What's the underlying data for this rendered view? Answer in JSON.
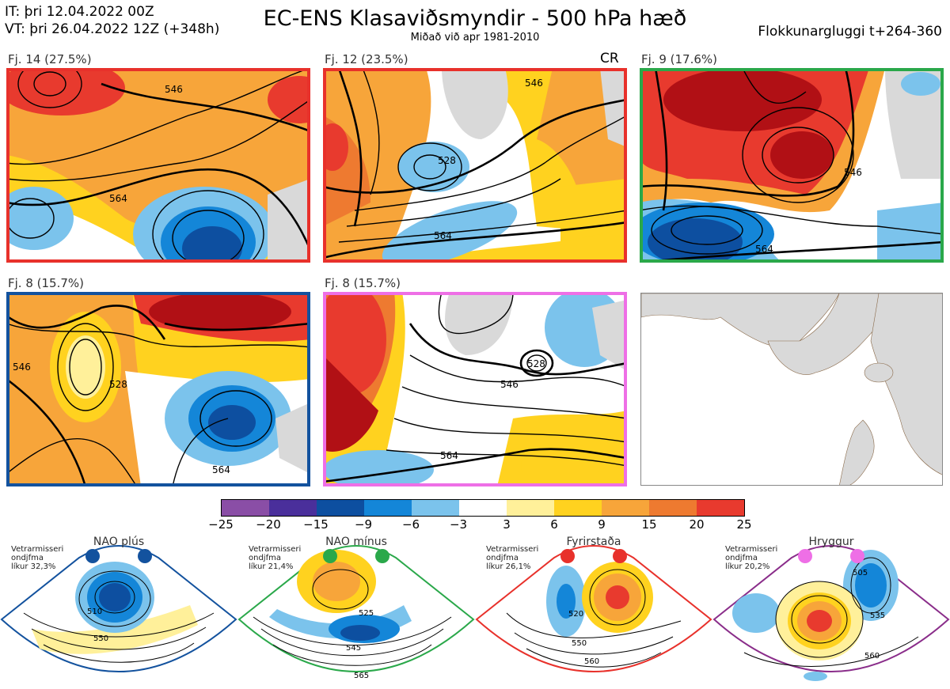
{
  "header": {
    "init_time": "IT: þri 12.04.2022 00Z",
    "valid_time": "VT: þri 26.04.2022 12Z  (+348h)",
    "title": "EC-ENS Klasaviðsmyndir - 500 hPa hæð",
    "subtitle": "Miðað við apr 1981-2010",
    "window": "Flokkunargluggi t+264-360"
  },
  "clusters": [
    {
      "label": "Fj. 14 (27.5%)",
      "frame_color": "#e8312b",
      "contours": [
        "564",
        "546"
      ]
    },
    {
      "label": "Fj. 12 (23.5%)",
      "frame_color": "#e8312b",
      "tag": "CR",
      "contours": [
        "546",
        "528",
        "564"
      ]
    },
    {
      "label": "Fj. 9 (17.6%)",
      "frame_color": "#2aa84a",
      "contours": [
        "546",
        "564"
      ]
    },
    {
      "label": "Fj. 8 (15.7%)",
      "frame_color": "#13529e",
      "contours": [
        "546",
        "528",
        "564"
      ]
    },
    {
      "label": "Fj. 8 (15.7%)",
      "frame_color": "#ee6fe6",
      "contours": [
        "528",
        "546",
        "564"
      ]
    }
  ],
  "colorbar": {
    "ticks": [
      "−25",
      "−20",
      "−15",
      "−9",
      "−6",
      "−3",
      "3",
      "6",
      "9",
      "15",
      "20",
      "25"
    ],
    "colors": [
      "#8a4ea6",
      "#4a2f9b",
      "#0d4fa0",
      "#1486d8",
      "#7bc3ec",
      "#ffffff",
      "#fff09a",
      "#ffd21f",
      "#f7a53a",
      "#ee7a30",
      "#e83a2e",
      "#b11015"
    ]
  },
  "regimes": [
    {
      "name": "NAO plús",
      "color": "#13529e",
      "note": [
        "Vetrarmisseri",
        "ondjfma",
        "líkur 32,3%"
      ],
      "contours": [
        "510",
        "550"
      ]
    },
    {
      "name": "NAO mínus",
      "color": "#2aa84a",
      "note": [
        "Vetrarmisseri",
        "ondjfma",
        "líkur 21,4%"
      ],
      "contours": [
        "525",
        "545",
        "565"
      ]
    },
    {
      "name": "Fyrirstaða",
      "color": "#e8312b",
      "note": [
        "Vetrarmisseri",
        "ondjfma",
        "líkur 26,1%"
      ],
      "contours": [
        "520",
        "550",
        "560"
      ]
    },
    {
      "name": "Hryggur",
      "color": "#ee6fe6",
      "note": [
        "Vetrarmisseri",
        "ondjfma",
        "líkur 20,2%"
      ],
      "contours": [
        "505",
        "535",
        "560"
      ]
    }
  ]
}
